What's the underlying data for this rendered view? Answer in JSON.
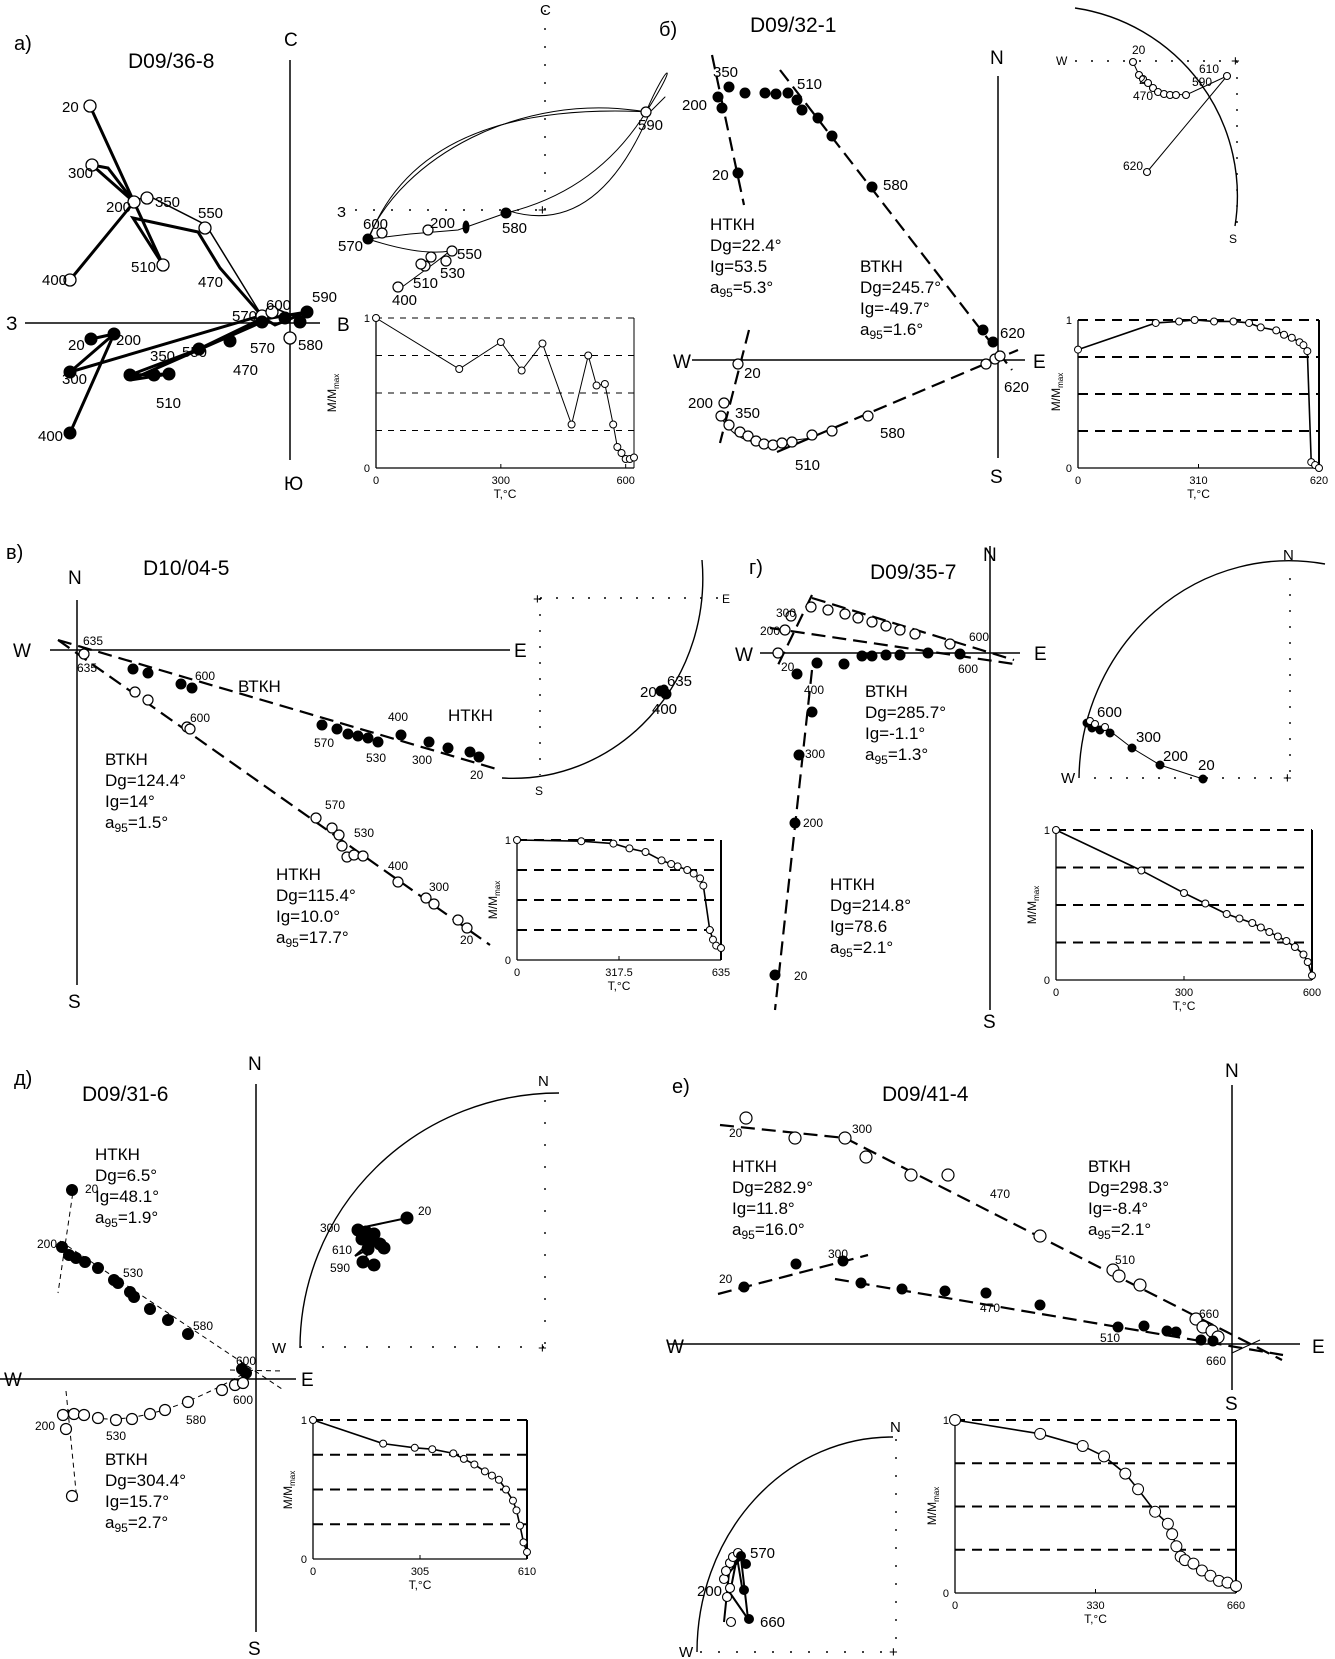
{
  "figure": {
    "panels": [
      {
        "key": "a",
        "letter": "а)",
        "sample": "D09/36-8",
        "dirs": {
          "n": "С",
          "s": "Ю",
          "w": "З",
          "e": "В"
        }
      },
      {
        "key": "b",
        "letter": "б)",
        "sample": "D09/32-1",
        "dirs": {
          "n": "N",
          "s": "S",
          "w": "W",
          "e": "E"
        },
        "components": [
          {
            "name": "НТКН",
            "dg": "Dg=22.4°",
            "ig": "Ig=53.5",
            "a95_prefix": "a",
            "a95_sub": "95",
            "a95_val": "=5.3°"
          },
          {
            "name": "ВТКН",
            "dg": "Dg=245.7°",
            "ig": "Ig=-49.7°",
            "a95_prefix": "a",
            "a95_sub": "95",
            "a95_val": "=1.6°"
          }
        ]
      },
      {
        "key": "v",
        "letter": "в)",
        "sample": "D10/04-5",
        "dirs": {
          "n": "N",
          "s": "S",
          "w": "W",
          "e": "E"
        },
        "components": [
          {
            "name": "ВТКН",
            "dg": "Dg=124.4°",
            "ig": "Ig=14°",
            "a95_prefix": "a",
            "a95_sub": "95",
            "a95_val": "=1.5°"
          },
          {
            "name": "НТКН",
            "dg": "Dg=115.4°",
            "ig": "Ig=10.0°",
            "a95_prefix": "a",
            "a95_sub": "95",
            "a95_val": "=17.7°"
          }
        ],
        "extra": [
          "ВТКН",
          "НТКН"
        ]
      },
      {
        "key": "g",
        "letter": "г)",
        "sample": "D09/35-7",
        "dirs": {
          "n": "N",
          "s": "S",
          "w": "W",
          "e": "E"
        },
        "components": [
          {
            "name": "ВТКН",
            "dg": "Dg=285.7°",
            "ig": "Ig=-1.1°",
            "a95_prefix": "a",
            "a95_sub": "95",
            "a95_val": "=1.3°"
          },
          {
            "name": "НТКН",
            "dg": "Dg=214.8°",
            "ig": "Ig=78.6",
            "a95_prefix": "a",
            "a95_sub": "95",
            "a95_val": "=2.1°"
          }
        ]
      },
      {
        "key": "d",
        "letter": "д)",
        "sample": "D09/31-6",
        "dirs": {
          "n": "N",
          "s": "S",
          "w": "W",
          "e": "E"
        },
        "components": [
          {
            "name": "НТКН",
            "dg": "Dg=6.5°",
            "ig": "Ig=48.1°",
            "a95_prefix": "a",
            "a95_sub": "95",
            "a95_val": "=1.9°"
          },
          {
            "name": "ВТКН",
            "dg": "Dg=304.4°",
            "ig": "Ig=15.7°",
            "a95_prefix": "a",
            "a95_sub": "95",
            "a95_val": "=2.7°"
          }
        ]
      },
      {
        "key": "e",
        "letter": "е)",
        "sample": "D09/41-4",
        "dirs": {
          "n": "N",
          "s": "S",
          "w": "W",
          "e": "E"
        },
        "components": [
          {
            "name": "НТКН",
            "dg": "Dg=282.9°",
            "ig": "Ig=11.8°",
            "a95_prefix": "a",
            "a95_sub": "95",
            "a95_val": "=16.0°"
          },
          {
            "name": "ВТКН",
            "dg": "Dg=298.3°",
            "ig": "Ig=-8.4°",
            "a95_prefix": "a",
            "a95_sub": "95",
            "a95_val": "=2.1°"
          }
        ]
      }
    ]
  },
  "chart_data": [
    {
      "type": "line",
      "panel": "а)",
      "ylabel": "M/M",
      "ylabel_sub": "max",
      "xlabel": "T,°C",
      "xticks": [
        "0",
        "300",
        "600"
      ],
      "yticks": [
        "0",
        "1"
      ],
      "xlim": [
        0,
        620
      ],
      "ylim": [
        0,
        1
      ],
      "x": [
        0,
        200,
        300,
        350,
        400,
        470,
        510,
        530,
        550,
        570,
        580,
        590,
        600,
        610,
        620
      ],
      "y": [
        1.0,
        0.66,
        0.84,
        0.65,
        0.83,
        0.29,
        0.75,
        0.55,
        0.56,
        0.29,
        0.14,
        0.1,
        0.06,
        0.06,
        0.07
      ]
    },
    {
      "type": "line",
      "panel": "б)",
      "ylabel": "M/M",
      "ylabel_sub": "max",
      "xlabel": "T,°C",
      "xticks": [
        "0",
        "310",
        "620"
      ],
      "yticks": [
        "0",
        "1"
      ],
      "xlim": [
        0,
        620
      ],
      "ylim": [
        0,
        1
      ],
      "x": [
        0,
        200,
        260,
        300,
        350,
        400,
        440,
        470,
        510,
        530,
        550,
        570,
        580,
        590,
        600,
        610,
        620
      ],
      "y": [
        0.8,
        0.98,
        0.99,
        1.0,
        0.99,
        0.99,
        0.98,
        0.95,
        0.93,
        0.9,
        0.88,
        0.85,
        0.83,
        0.79,
        0.04,
        0.02,
        0.0
      ]
    },
    {
      "type": "line",
      "panel": "в)",
      "ylabel": "M/M",
      "ylabel_sub": "max",
      "xlabel": "T,°C",
      "xticks": [
        "0",
        "317.5",
        "635"
      ],
      "yticks": [
        "0",
        "1"
      ],
      "xlim": [
        0,
        635
      ],
      "ylim": [
        0,
        1
      ],
      "x": [
        0,
        200,
        300,
        350,
        400,
        450,
        480,
        500,
        530,
        550,
        570,
        580,
        600,
        610,
        620,
        635
      ],
      "y": [
        1.0,
        0.99,
        0.97,
        0.93,
        0.9,
        0.83,
        0.8,
        0.78,
        0.75,
        0.72,
        0.68,
        0.62,
        0.25,
        0.17,
        0.12,
        0.1
      ]
    },
    {
      "type": "line",
      "panel": "г)",
      "ylabel": "M/M",
      "ylabel_sub": "max",
      "xlabel": "T,°C",
      "xticks": [
        "0",
        "300",
        "600"
      ],
      "yticks": [
        "0",
        "1"
      ],
      "xlim": [
        0,
        600
      ],
      "ylim": [
        0,
        1
      ],
      "x": [
        0,
        200,
        300,
        350,
        400,
        430,
        460,
        480,
        500,
        520,
        540,
        560,
        580,
        590,
        600
      ],
      "y": [
        1.0,
        0.73,
        0.58,
        0.51,
        0.44,
        0.41,
        0.38,
        0.35,
        0.32,
        0.29,
        0.26,
        0.22,
        0.17,
        0.12,
        0.03
      ]
    },
    {
      "type": "line",
      "panel": "д)",
      "ylabel": "M/M",
      "ylabel_sub": "max",
      "xlabel": "T,°C",
      "xticks": [
        "0",
        "305",
        "610"
      ],
      "yticks": [
        "0",
        "1"
      ],
      "xlim": [
        0,
        610
      ],
      "ylim": [
        0,
        1
      ],
      "x": [
        0,
        200,
        290,
        340,
        400,
        430,
        460,
        490,
        510,
        530,
        550,
        570,
        580,
        590,
        600,
        610
      ],
      "y": [
        1.0,
        0.83,
        0.8,
        0.79,
        0.76,
        0.72,
        0.68,
        0.63,
        0.6,
        0.57,
        0.5,
        0.42,
        0.35,
        0.24,
        0.12,
        0.05
      ]
    },
    {
      "type": "line",
      "panel": "е)",
      "ylabel": "M/M",
      "ylabel_sub": "max",
      "xlabel": "T,°C",
      "xticks": [
        "0",
        "330",
        "660"
      ],
      "yticks": [
        "0",
        "1"
      ],
      "xlim": [
        0,
        660
      ],
      "ylim": [
        0,
        1
      ],
      "x": [
        0,
        200,
        300,
        350,
        400,
        430,
        470,
        500,
        510,
        520,
        530,
        540,
        560,
        580,
        600,
        620,
        640,
        660
      ],
      "y": [
        1.0,
        0.92,
        0.85,
        0.79,
        0.69,
        0.6,
        0.47,
        0.4,
        0.34,
        0.27,
        0.21,
        0.19,
        0.17,
        0.13,
        0.1,
        0.07,
        0.06,
        0.04
      ]
    }
  ]
}
